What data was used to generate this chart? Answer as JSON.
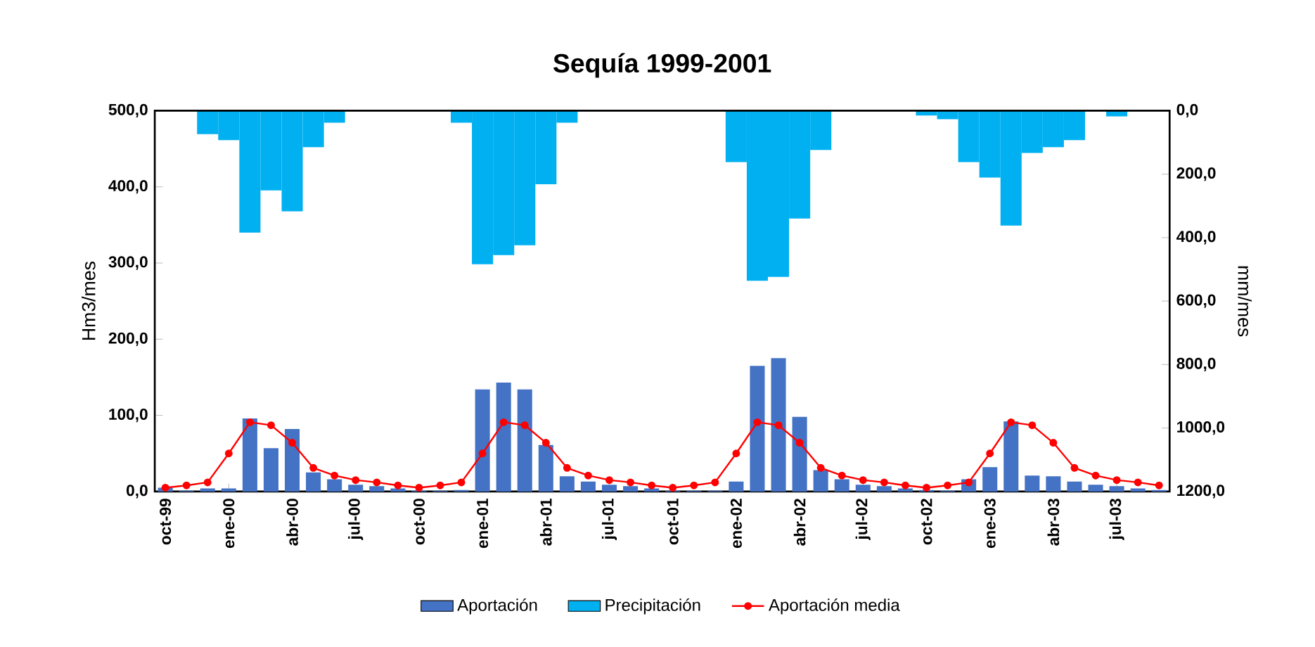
{
  "chart_data": {
    "type": "bar",
    "title": "Sequía 1999-2001",
    "ylabel": "Hm3/mes",
    "y2label": "mm/mes",
    "categories": [
      "oct-99",
      null,
      null,
      "ene-00",
      null,
      null,
      "abr-00",
      null,
      null,
      "jul-00",
      null,
      null,
      "oct-00",
      null,
      null,
      "ene-01",
      null,
      null,
      "abr-01",
      null,
      null,
      "jul-01",
      null,
      null,
      "oct-01",
      null,
      null,
      "ene-02",
      null,
      null,
      "abr-02",
      null,
      null,
      "jul-02",
      null,
      null,
      "oct-02",
      null,
      null,
      "ene-03",
      null,
      null,
      "abr-03",
      null,
      null,
      "jul-03",
      null,
      null
    ],
    "series": [
      {
        "name": "Aportación",
        "color": "#4472c4",
        "values": [
          5,
          1,
          4,
          4,
          96,
          57,
          82,
          25,
          16,
          9,
          7,
          4,
          1,
          1,
          2,
          134,
          143,
          134,
          61,
          20,
          13,
          9,
          7,
          4,
          1,
          1,
          1,
          13,
          165,
          175,
          98,
          28,
          16,
          9,
          7,
          4,
          2,
          1,
          16,
          32,
          92,
          21,
          20,
          13,
          9,
          7,
          4,
          2
        ]
      },
      {
        "name": "Precipitación",
        "axis": "y2",
        "color": "#00b0f0",
        "values": [
          0,
          0,
          74,
          93,
          384,
          251,
          317,
          115,
          38,
          0,
          0,
          0,
          0,
          0,
          38,
          484,
          455,
          424,
          232,
          38,
          0,
          0,
          0,
          0,
          0,
          0,
          0,
          162,
          536,
          524,
          340,
          124,
          0,
          0,
          0,
          0,
          15,
          27,
          162,
          211,
          362,
          133,
          115,
          93,
          0,
          18,
          0,
          0
        ]
      },
      {
        "name": "Aportación media",
        "type": "line",
        "color": "#ff0000",
        "marker": "circle",
        "values": [
          5,
          8,
          12,
          50,
          91,
          87,
          64,
          31,
          21,
          15,
          12,
          8,
          5,
          8,
          12,
          50,
          91,
          87,
          64,
          31,
          21,
          15,
          12,
          8,
          5,
          8,
          12,
          50,
          91,
          87,
          64,
          31,
          21,
          15,
          12,
          8,
          5,
          8,
          12,
          50,
          91,
          87,
          64,
          31,
          21,
          15,
          12,
          8
        ]
      }
    ],
    "ylim": [
      0,
      500
    ],
    "yticks": [
      {
        "value": 0,
        "label": "0,0"
      },
      {
        "value": 100,
        "label": "100,0"
      },
      {
        "value": 200,
        "label": "200,0"
      },
      {
        "value": 300,
        "label": "300,0"
      },
      {
        "value": 400,
        "label": "400,0"
      },
      {
        "value": 500,
        "label": "500,0"
      }
    ],
    "y2lim": [
      1200,
      0
    ],
    "y2ticks": [
      {
        "value": 0,
        "label": "0,0"
      },
      {
        "value": 200,
        "label": "200,0"
      },
      {
        "value": 400,
        "label": "400,0"
      },
      {
        "value": 600,
        "label": "600,0"
      },
      {
        "value": 800,
        "label": "800,0"
      },
      {
        "value": 1000,
        "label": "1000,0"
      },
      {
        "value": 1200,
        "label": "1200,0"
      }
    ],
    "grid": false,
    "legend": "bottom"
  }
}
